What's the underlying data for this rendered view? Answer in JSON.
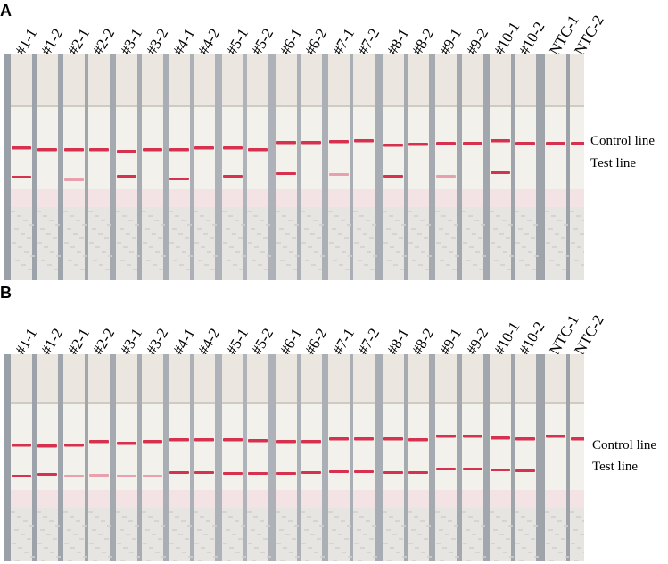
{
  "panels": [
    {
      "letter": "A",
      "strips": [
        {
          "label": "#1-1",
          "control": true,
          "test": "strong"
        },
        {
          "label": "#1-2",
          "control": true,
          "test": "none"
        },
        {
          "label": "#2-1",
          "control": true,
          "test": "faint"
        },
        {
          "label": "#2-2",
          "control": true,
          "test": "none"
        },
        {
          "label": "#3-1",
          "control": true,
          "test": "strong"
        },
        {
          "label": "#3-2",
          "control": true,
          "test": "none"
        },
        {
          "label": "#4-1",
          "control": true,
          "test": "strong"
        },
        {
          "label": "#4-2",
          "control": true,
          "test": "none"
        },
        {
          "label": "#5-1",
          "control": true,
          "test": "strong"
        },
        {
          "label": "#5-2",
          "control": true,
          "test": "none"
        },
        {
          "label": "#6-1",
          "control": true,
          "test": "strong"
        },
        {
          "label": "#6-2",
          "control": true,
          "test": "none"
        },
        {
          "label": "#7-1",
          "control": true,
          "test": "faint"
        },
        {
          "label": "#7-2",
          "control": true,
          "test": "none"
        },
        {
          "label": "#8-1",
          "control": true,
          "test": "strong"
        },
        {
          "label": "#8-2",
          "control": true,
          "test": "none"
        },
        {
          "label": "#9-1",
          "control": true,
          "test": "faint"
        },
        {
          "label": "#9-2",
          "control": true,
          "test": "none"
        },
        {
          "label": "#10-1",
          "control": true,
          "test": "strong"
        },
        {
          "label": "#10-2",
          "control": true,
          "test": "none"
        },
        {
          "label": "NTC-1",
          "control": true,
          "test": "none"
        },
        {
          "label": "NTC-2",
          "control": true,
          "test": "none"
        }
      ],
      "control_text": "Control line",
      "test_text": "Test line"
    },
    {
      "letter": "B",
      "strips": [
        {
          "label": "#1-1",
          "control": true,
          "test": "strong"
        },
        {
          "label": "#1-2",
          "control": true,
          "test": "strong"
        },
        {
          "label": "#2-1",
          "control": true,
          "test": "faint"
        },
        {
          "label": "#2-2",
          "control": true,
          "test": "faint"
        },
        {
          "label": "#3-1",
          "control": true,
          "test": "faint"
        },
        {
          "label": "#3-2",
          "control": true,
          "test": "faint"
        },
        {
          "label": "#4-1",
          "control": true,
          "test": "strong"
        },
        {
          "label": "#4-2",
          "control": true,
          "test": "strong"
        },
        {
          "label": "#5-1",
          "control": true,
          "test": "strong"
        },
        {
          "label": "#5-2",
          "control": true,
          "test": "strong"
        },
        {
          "label": "#6-1",
          "control": true,
          "test": "strong"
        },
        {
          "label": "#6-2",
          "control": true,
          "test": "strong"
        },
        {
          "label": "#7-1",
          "control": true,
          "test": "strong"
        },
        {
          "label": "#7-2",
          "control": true,
          "test": "strong"
        },
        {
          "label": "#8-1",
          "control": true,
          "test": "strong"
        },
        {
          "label": "#8-2",
          "control": true,
          "test": "strong"
        },
        {
          "label": "#9-1",
          "control": true,
          "test": "strong"
        },
        {
          "label": "#9-2",
          "control": true,
          "test": "strong"
        },
        {
          "label": "#10-1",
          "control": true,
          "test": "strong"
        },
        {
          "label": "#10-2",
          "control": true,
          "test": "strong"
        },
        {
          "label": "NTC-1",
          "control": true,
          "test": "none"
        },
        {
          "label": "NTC-2",
          "control": true,
          "test": "none"
        }
      ],
      "control_text": "Control line",
      "test_text": "Test line"
    }
  ],
  "colors": {
    "line_strong": "#d6314f",
    "line_faint": "#e8a0ad",
    "strip_body": "#f3f1ec",
    "sample_pad": "#e7e5e1",
    "background": "#a6abb2"
  }
}
